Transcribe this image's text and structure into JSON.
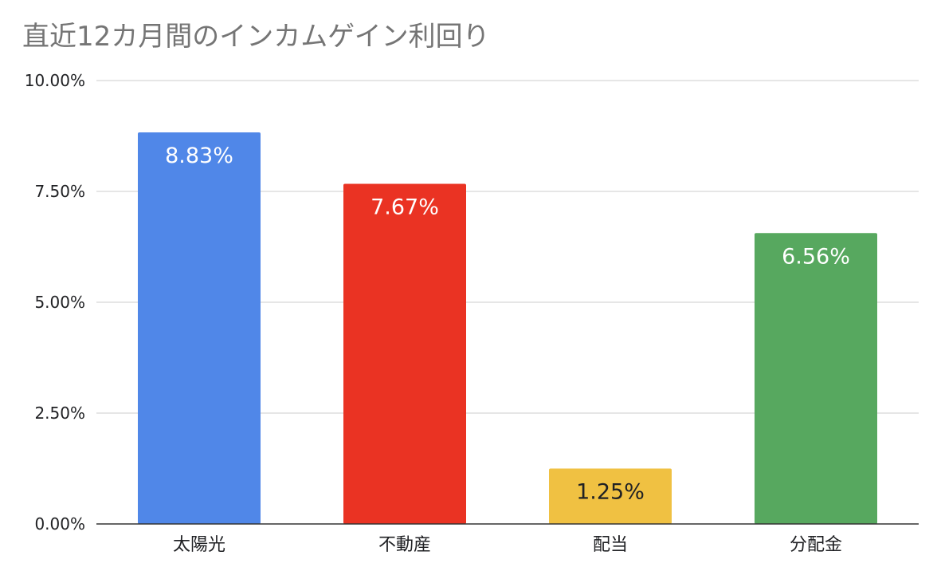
{
  "chart_data": {
    "type": "bar",
    "title": "直近12カ月間のインカムゲイン利回り",
    "categories": [
      "太陽光",
      "不動産",
      "配当",
      "分配金"
    ],
    "values": [
      8.83,
      7.67,
      1.25,
      6.56
    ],
    "data_labels": [
      "8.83%",
      "7.67%",
      "1.25%",
      "6.56%"
    ],
    "colors": [
      "#5087e8",
      "#ea3323",
      "#f0c142",
      "#57a85f"
    ],
    "label_colors": [
      "#ffffff",
      "#ffffff",
      "#202124",
      "#ffffff"
    ],
    "ylim": [
      0,
      10
    ],
    "yticks": [
      0,
      2.5,
      5,
      7.5,
      10
    ],
    "ytick_labels": [
      "0.00%",
      "2.50%",
      "5.00%",
      "7.50%",
      "10.00%"
    ],
    "grid": true,
    "legend": "none",
    "xlabel": "",
    "ylabel": ""
  }
}
